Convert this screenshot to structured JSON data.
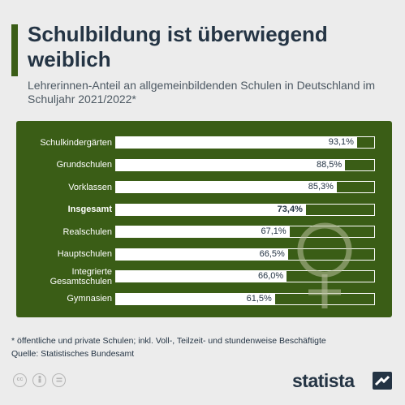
{
  "header": {
    "title": "Schulbildung ist überwiegend weiblich",
    "subtitle": "Lehrerinnen-Anteil an allgemeinbildenden Schulen in Deutschland im Schuljahr 2021/2022*"
  },
  "chart_data": {
    "type": "bar",
    "orientation": "horizontal",
    "categories": [
      "Schulkindergärten",
      "Grundschulen",
      "Vorklassen",
      "Insgesamt",
      "Realschulen",
      "Hauptschulen",
      "Integrierte Gesamtschulen",
      "Gymnasien"
    ],
    "values": [
      93.1,
      88.5,
      85.3,
      73.4,
      67.1,
      66.5,
      66.0,
      61.5
    ],
    "value_labels": [
      "93,1%",
      "88,5%",
      "85,3%",
      "73,4%",
      "67,1%",
      "66,5%",
      "66,0%",
      "61,5%"
    ],
    "highlighted_category": "Insgesamt",
    "xlim": [
      0,
      100
    ],
    "unit": "%",
    "colors": {
      "panel": "#3a5d16",
      "bar": "#ffffff",
      "text_dark": "#243444"
    }
  },
  "footer": {
    "footnote": "* öffentliche und private Schulen; inkl. Voll-, Teilzeit- und stundenweise Beschäftigte",
    "source": "Quelle: Statistisches Bundesamt",
    "brand": "statista",
    "license_icons": [
      "cc-icon",
      "attribution-icon",
      "no-derivatives-icon"
    ]
  }
}
